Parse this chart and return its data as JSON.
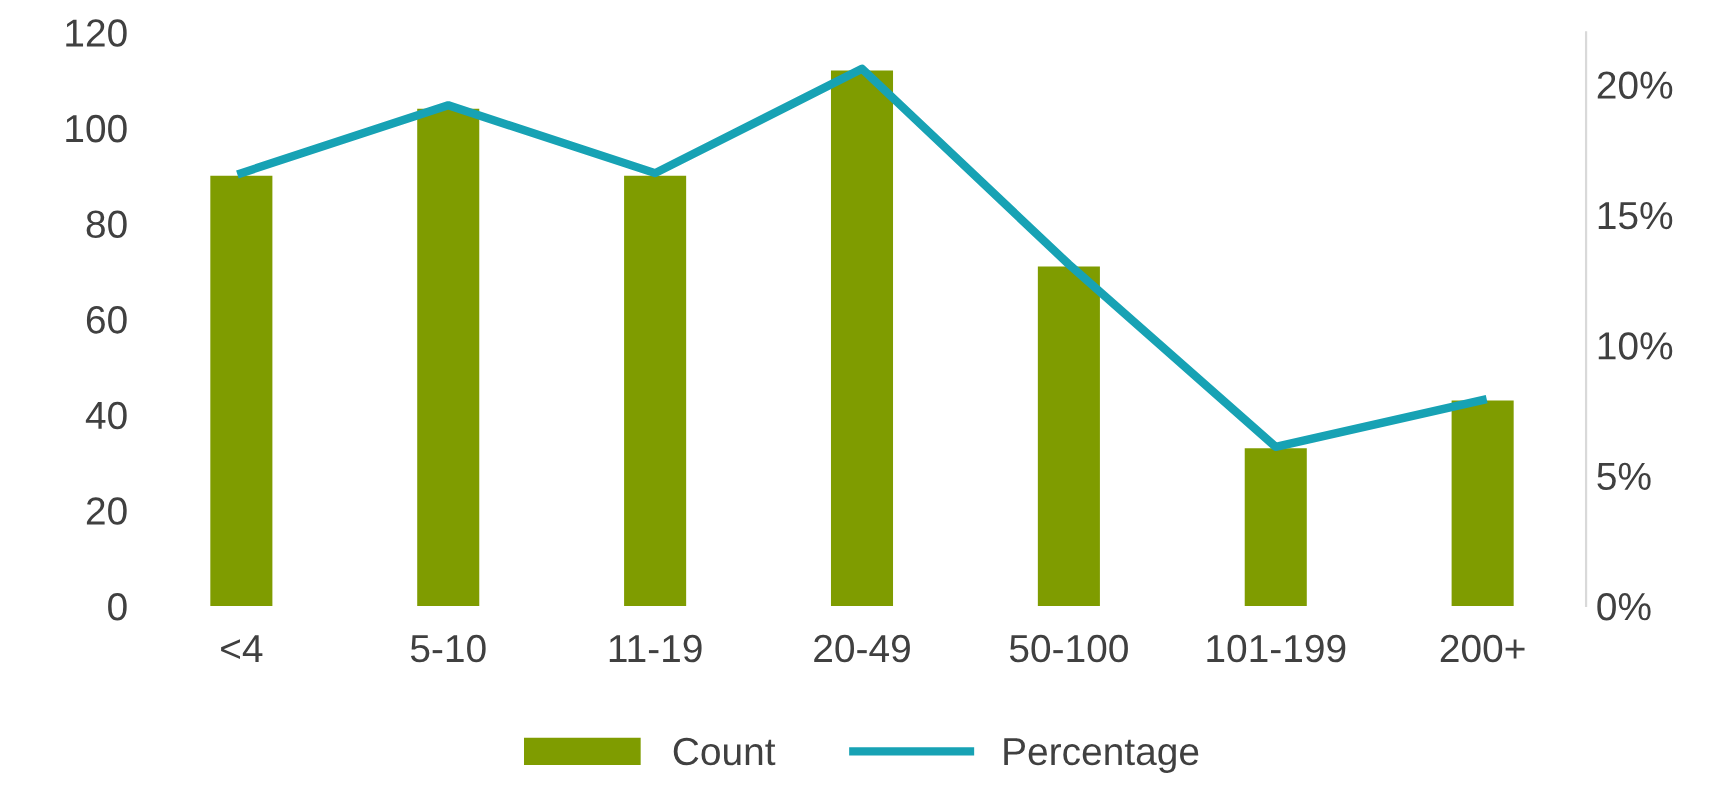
{
  "chart_data": {
    "type": "bar",
    "categories": [
      "<4",
      "5-10",
      "11-19",
      "20-49",
      "50-100",
      "101-199",
      "200+"
    ],
    "series": [
      {
        "name": "Count",
        "color": "#7f9c00",
        "values": [
          90,
          104,
          90,
          112,
          71,
          33,
          43
        ]
      },
      {
        "name": "Percentage",
        "type": "line",
        "axis": "y2",
        "color": "#17a2b4",
        "values": [
          16.6,
          19.2,
          16.6,
          20.6,
          13.1,
          6.1,
          7.9
        ]
      }
    ],
    "ylim": [
      0,
      120
    ],
    "yticks": [
      0,
      20,
      40,
      60,
      80,
      100,
      120
    ],
    "y2lim": [
      0,
      22
    ],
    "y2ticks": [
      {
        "value": 0,
        "label": "0%"
      },
      {
        "value": 5,
        "label": "5%"
      },
      {
        "value": 10,
        "label": "10%"
      },
      {
        "value": 15,
        "label": "15%"
      },
      {
        "value": 20,
        "label": "20%"
      }
    ],
    "legend": "bottom",
    "grid": false,
    "marker": "none"
  }
}
